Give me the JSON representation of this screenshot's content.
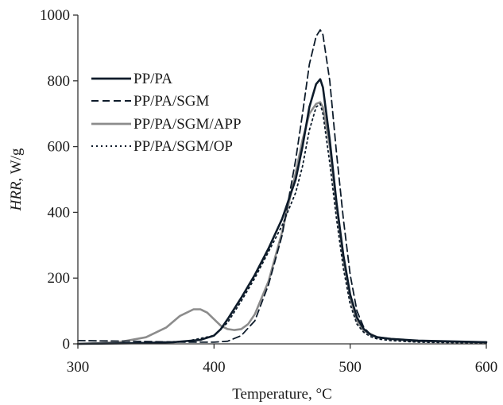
{
  "chart_data": {
    "type": "line",
    "title": "",
    "xlabel": "Temperature, °C",
    "ylabel_italic": "HRR",
    "ylabel_rest": ", W/g",
    "xlim": [
      300,
      600
    ],
    "ylim": [
      0,
      1000
    ],
    "xticks": [
      300,
      400,
      500,
      600
    ],
    "yticks": [
      0,
      200,
      400,
      600,
      800,
      1000
    ],
    "grid": false,
    "legend_position": "top-left",
    "series": [
      {
        "name": "PP/PA",
        "color": "#0d1b2a",
        "style": "solid",
        "x": [
          300,
          340,
          370,
          390,
          400,
          405,
          410,
          420,
          430,
          440,
          450,
          460,
          465,
          470,
          475,
          478,
          480,
          485,
          490,
          495,
          500,
          505,
          510,
          515,
          520,
          530,
          550,
          600
        ],
        "y": [
          0,
          2,
          5,
          12,
          25,
          45,
          75,
          140,
          210,
          290,
          380,
          500,
          600,
          720,
          790,
          805,
          780,
          620,
          430,
          270,
          150,
          80,
          45,
          28,
          20,
          15,
          10,
          5
        ]
      },
      {
        "name": "PP/PA/SGM",
        "color": "#0d1b2a",
        "style": "dashed",
        "x": [
          300,
          340,
          380,
          400,
          410,
          420,
          430,
          440,
          450,
          460,
          465,
          470,
          475,
          478,
          480,
          485,
          490,
          495,
          500,
          505,
          510,
          515,
          520,
          530,
          550,
          600
        ],
        "y": [
          10,
          8,
          5,
          5,
          8,
          25,
          70,
          180,
          330,
          560,
          700,
          850,
          935,
          955,
          940,
          800,
          580,
          380,
          210,
          100,
          50,
          28,
          20,
          15,
          10,
          5
        ]
      },
      {
        "name": "PP/PA/SGM/APP",
        "color": "#8c8c8c",
        "style": "solid",
        "x": [
          300,
          330,
          350,
          365,
          375,
          385,
          390,
          395,
          400,
          405,
          410,
          415,
          420,
          425,
          430,
          440,
          450,
          460,
          465,
          470,
          475,
          478,
          480,
          485,
          490,
          495,
          500,
          505,
          510,
          520,
          530,
          550,
          600
        ],
        "y": [
          0,
          5,
          20,
          50,
          85,
          105,
          105,
          95,
          75,
          55,
          45,
          42,
          45,
          60,
          90,
          190,
          340,
          520,
          620,
          700,
          730,
          735,
          720,
          600,
          420,
          260,
          140,
          70,
          40,
          20,
          15,
          8,
          5
        ]
      },
      {
        "name": "PP/PA/SGM/OP",
        "color": "#0d1b2a",
        "style": "dotted",
        "x": [
          300,
          340,
          380,
          400,
          410,
          420,
          430,
          440,
          450,
          460,
          465,
          470,
          475,
          478,
          480,
          485,
          490,
          495,
          500,
          505,
          510,
          515,
          520,
          530,
          550,
          600
        ],
        "y": [
          0,
          2,
          8,
          25,
          65,
          130,
          200,
          280,
          360,
          460,
          540,
          650,
          720,
          730,
          700,
          550,
          380,
          230,
          120,
          60,
          35,
          22,
          15,
          10,
          5,
          2
        ]
      }
    ]
  }
}
